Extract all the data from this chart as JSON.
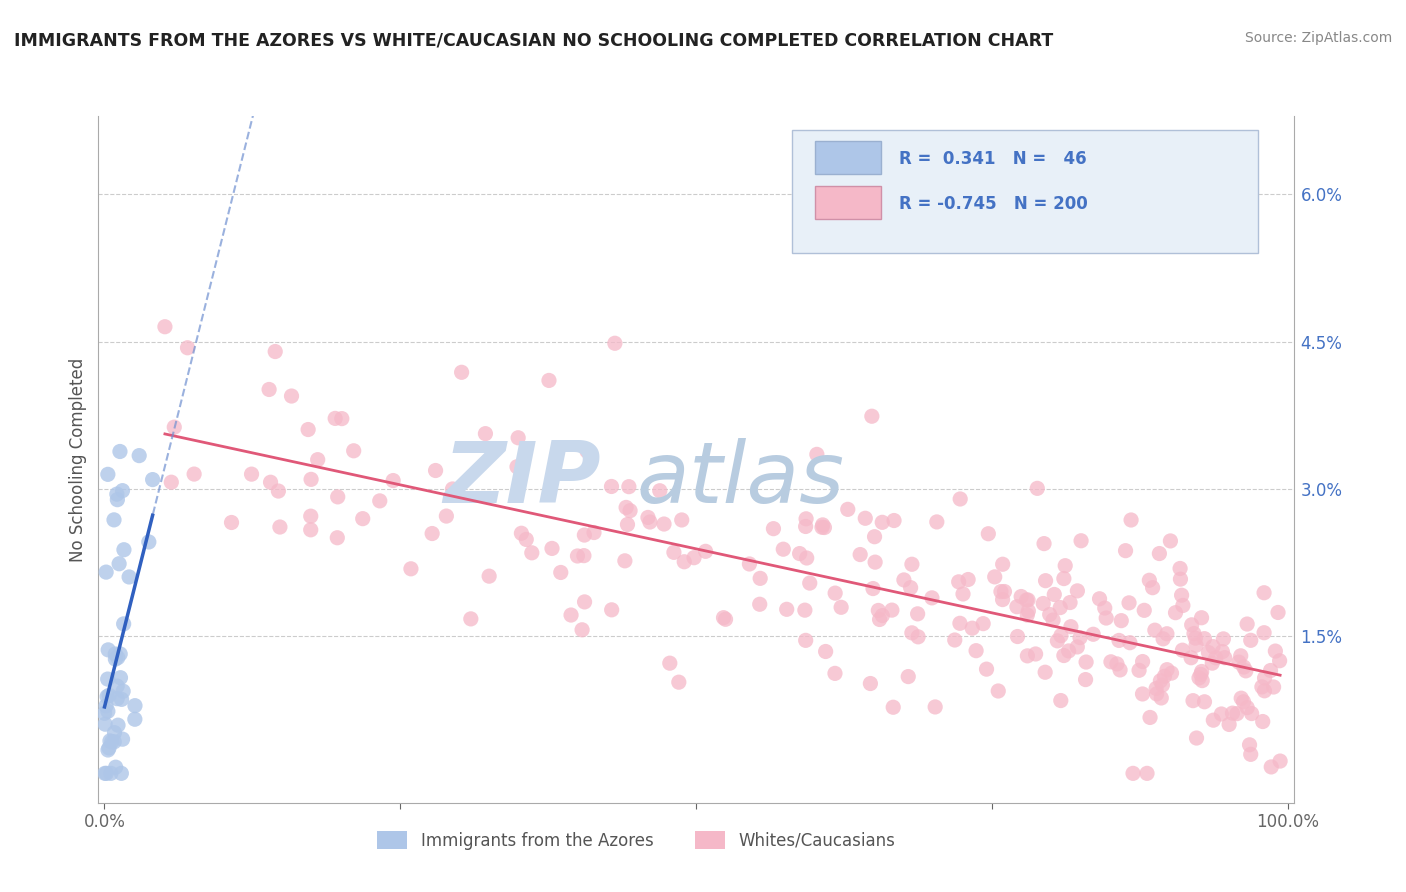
{
  "title": "IMMIGRANTS FROM THE AZORES VS WHITE/CAUCASIAN NO SCHOOLING COMPLETED CORRELATION CHART",
  "source": "Source: ZipAtlas.com",
  "ylabel": "No Schooling Completed",
  "ytick_vals": [
    0.015,
    0.03,
    0.045,
    0.06
  ],
  "ytick_labels": [
    "1.5%",
    "3.0%",
    "4.5%",
    "6.0%"
  ],
  "ymin": -0.002,
  "ymax": 0.068,
  "xmin": -0.005,
  "xmax": 1.005,
  "blue_R": 0.341,
  "blue_N": 46,
  "pink_R": -0.745,
  "pink_N": 200,
  "blue_color": "#aec6e8",
  "pink_color": "#f5b8c8",
  "blue_line_color": "#3060c0",
  "pink_line_color": "#e05878",
  "blue_dash_color": "#7090d0",
  "watermark_zip_color": "#c8d8ec",
  "watermark_atlas_color": "#b8cce0",
  "grid_color": "#cccccc",
  "title_color": "#222222",
  "legend_text_color": "#4472c4",
  "legend_box_edge": "#b0c0d8",
  "legend_box_fill": "#e8f0f8",
  "axis_color": "#aaaaaa",
  "tick_color": "#4472c4",
  "bottom_label_color": "#555555"
}
